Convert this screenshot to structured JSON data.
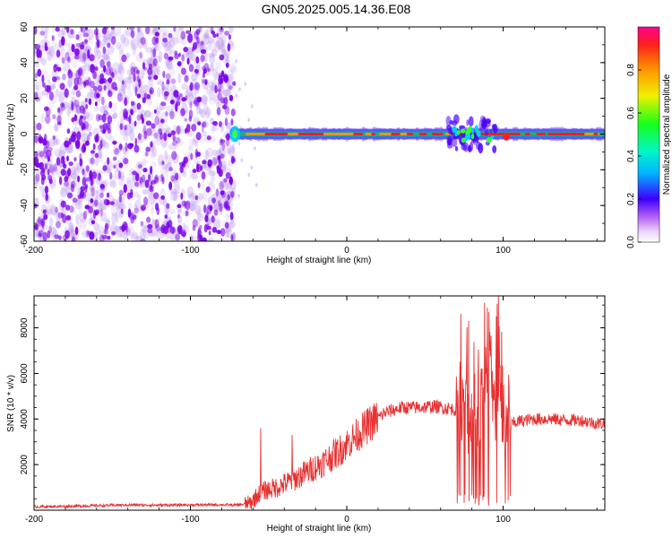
{
  "figure_title": "GN05.2025.005.14.36.E08",
  "colors": {
    "noise_purple": "#7a00e8",
    "snr_line": "#e83030",
    "axis": "#000000"
  },
  "chart_data": [
    {
      "type": "heatmap",
      "title": "GN05.2025.005.14.36.E08",
      "xlabel": "Height of straight line (km)",
      "ylabel": "Frequency (Hz)",
      "xlim": [
        -200,
        165
      ],
      "ylim": [
        -60,
        60
      ],
      "x_ticks": [
        "-200",
        "-100",
        "0",
        "100"
      ],
      "y_ticks": [
        "60",
        "40",
        "20",
        "0",
        "-20",
        "-40",
        "-60"
      ],
      "colorbar": {
        "label": "Normalized spectral amplitude",
        "range": [
          0,
          1
        ],
        "ticks": [
          "0.0",
          "0.2",
          "0.4",
          "0.6",
          "0.8"
        ],
        "colormap": "rainbow"
      },
      "features": {
        "noise_region_x": [
          -200,
          -72
        ],
        "signal_band_x": [
          -75,
          165
        ],
        "signal_band_frequency_hz": 0,
        "disturbance_x": [
          65,
          95
        ]
      }
    },
    {
      "type": "line",
      "xlabel": "Height of straight line (km)",
      "ylabel": "SNR (10 * v/v)",
      "xlim": [
        -200,
        165
      ],
      "ylim": [
        0,
        9400
      ],
      "x_ticks": [
        "-200",
        "-100",
        "0",
        "100"
      ],
      "y_ticks": [
        "2000",
        "4000",
        "6000",
        "8000"
      ],
      "series": [
        {
          "x": [
            -200,
            -180,
            -160,
            -140,
            -120,
            -100,
            -80,
            -70,
            -62,
            -55,
            -45,
            -35,
            -25,
            -15,
            -5,
            5,
            15,
            25,
            35,
            45,
            55,
            62,
            70,
            75,
            80,
            85,
            90,
            95,
            98,
            100,
            103,
            110,
            120,
            130,
            140,
            150,
            160,
            165
          ],
          "y": [
            150,
            170,
            200,
            230,
            220,
            230,
            240,
            220,
            300,
            800,
            1000,
            1300,
            1700,
            2100,
            2600,
            3200,
            3800,
            4300,
            4500,
            4500,
            4550,
            4500,
            4400,
            4450,
            3800,
            4500,
            5000,
            4400,
            5200,
            3900,
            3700,
            3900,
            4000,
            4000,
            3950,
            3950,
            3800,
            3800
          ]
        }
      ],
      "annotations": {
        "spike_x": [
          -55,
          -35,
          78,
          97
        ],
        "spike_y": [
          3600,
          3300,
          8300,
          9400
        ]
      }
    }
  ]
}
